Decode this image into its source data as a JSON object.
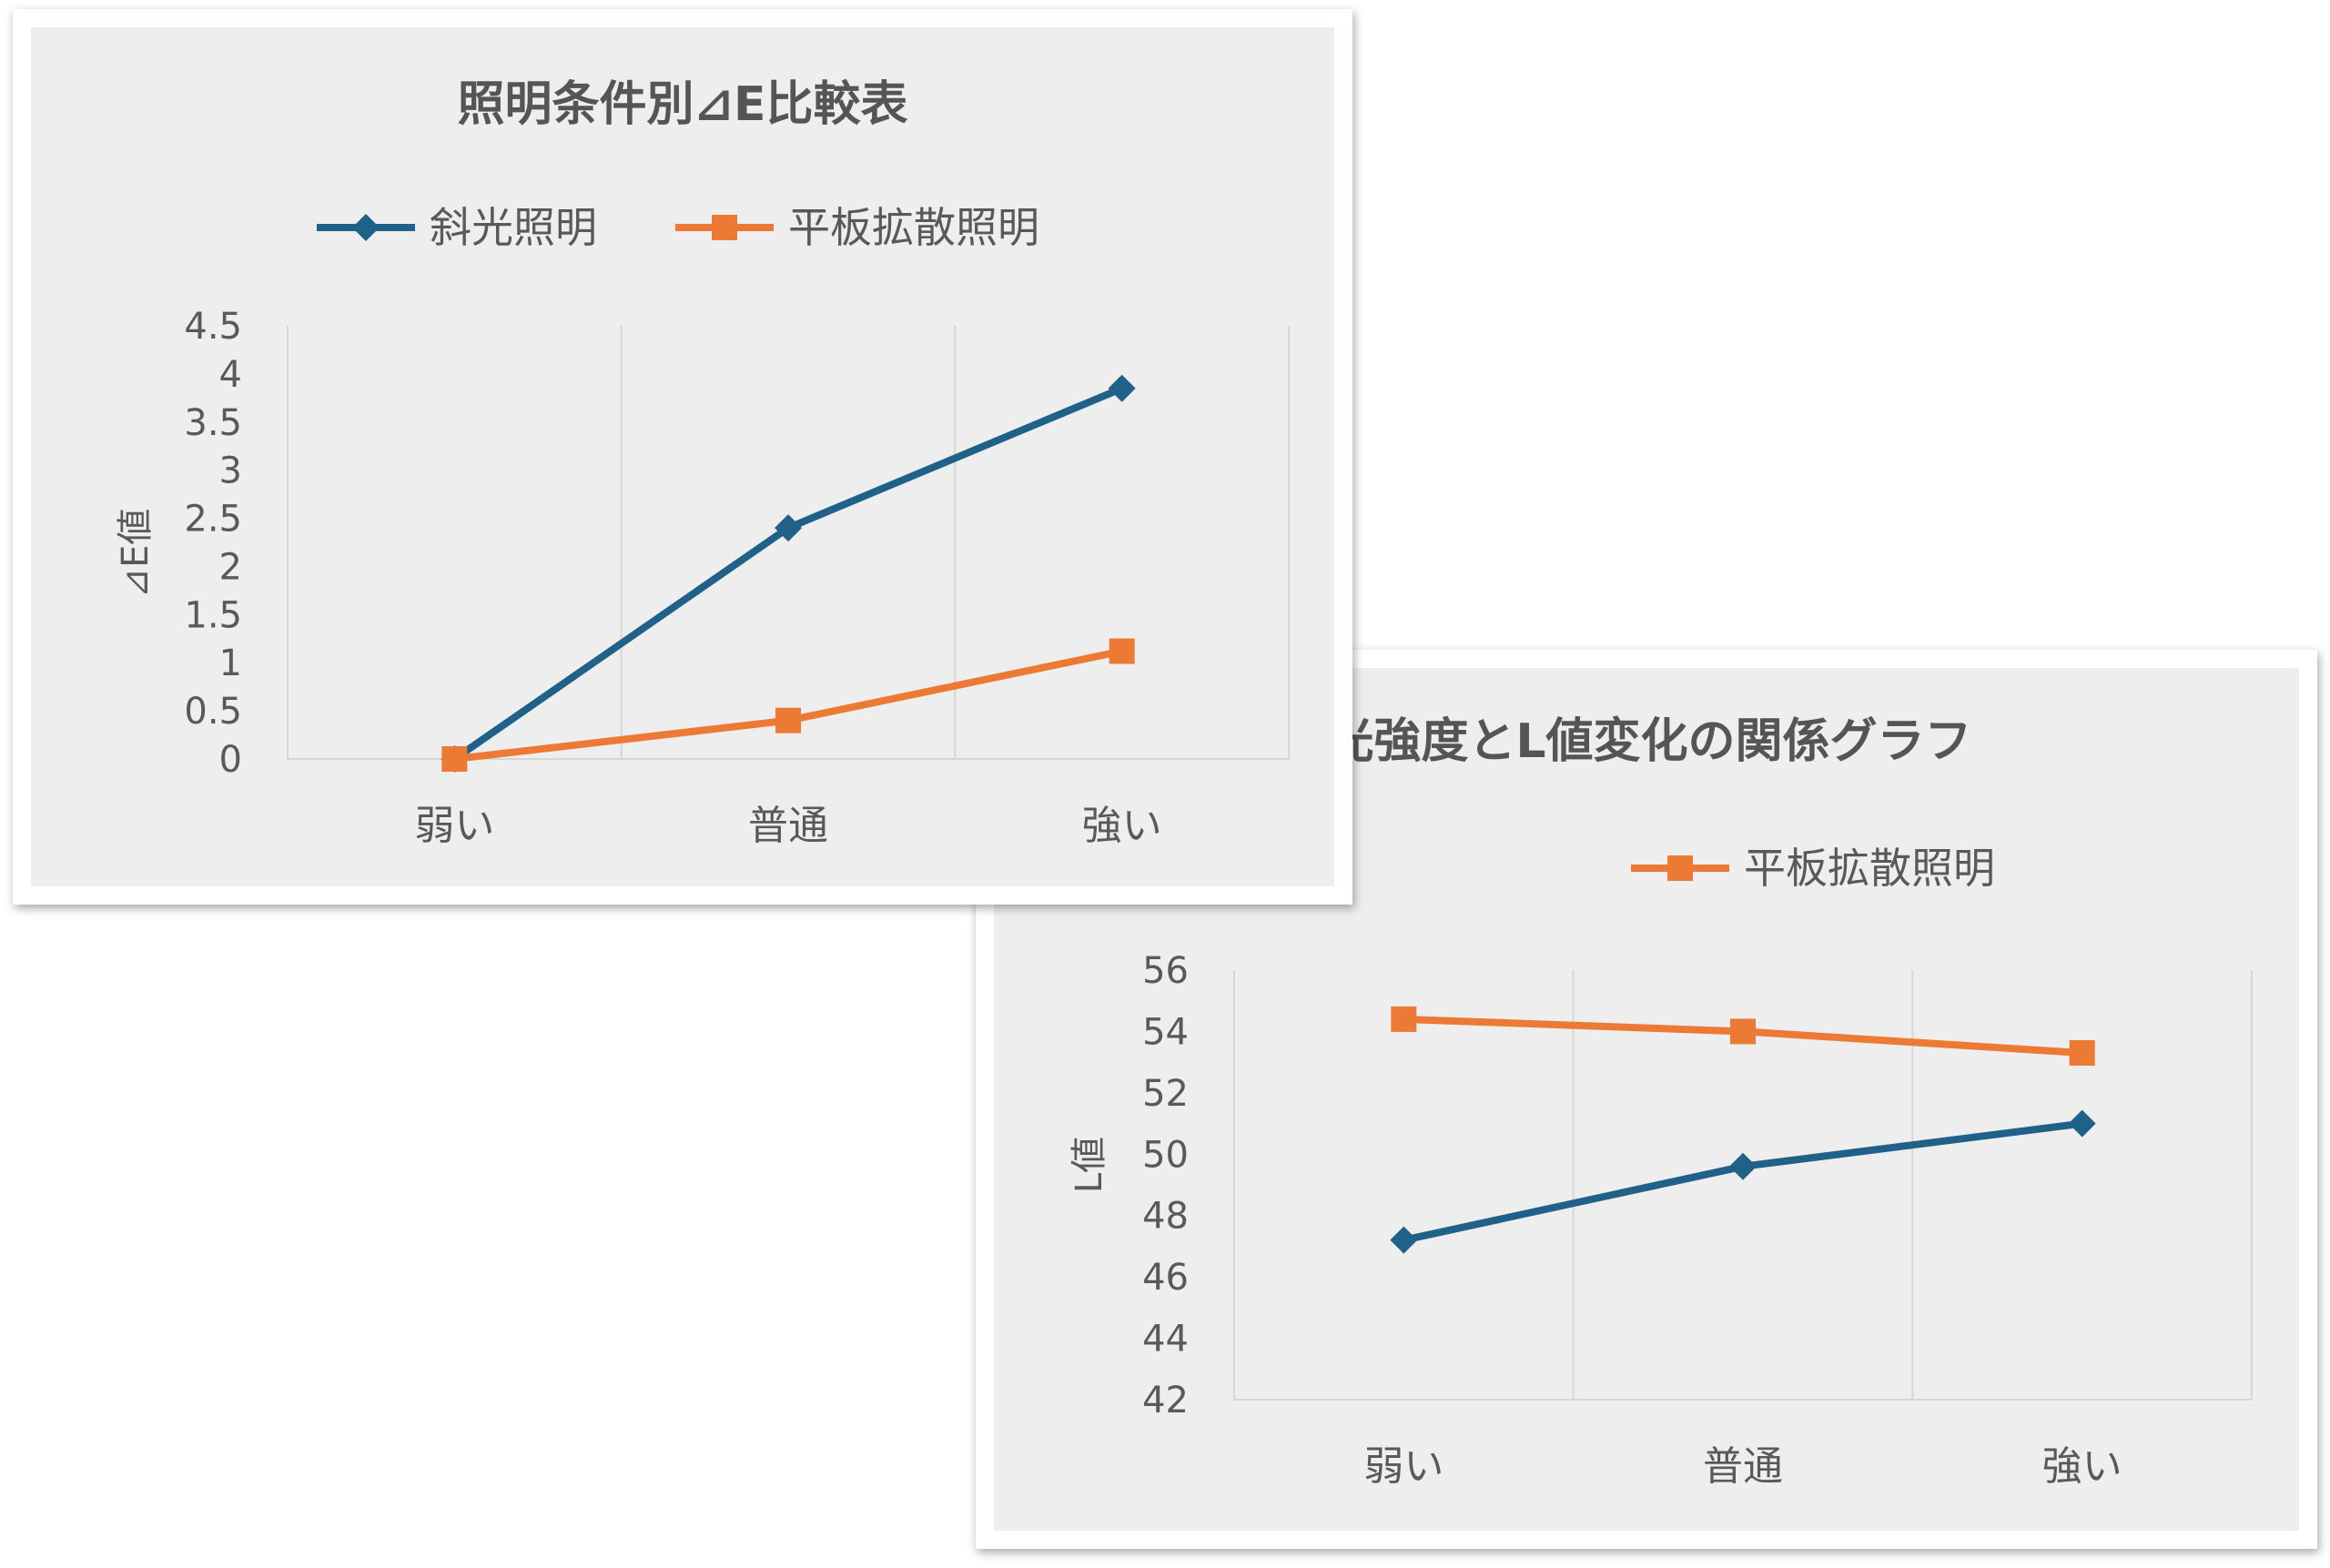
{
  "chart_data": [
    {
      "type": "line",
      "title": "照明条件別⊿E比較表",
      "categories": [
        "弱い",
        "普通",
        "強い"
      ],
      "ylabel": "⊿E値",
      "ylim": [
        0,
        4.5
      ],
      "yticks": [
        "0",
        "0.5",
        "1",
        "1.5",
        "2",
        "2.5",
        "3",
        "3.5",
        "4",
        "4.5"
      ],
      "grid": "vertical",
      "legend": "top",
      "series": [
        {
          "name": "斜光照明",
          "values": [
            0,
            2.4,
            3.85
          ],
          "color": "#1f6188",
          "marker": "diamond"
        },
        {
          "name": "平板拡散照明",
          "values": [
            0,
            0.4,
            1.12
          ],
          "color": "#ec7a34",
          "marker": "square"
        }
      ]
    },
    {
      "type": "line",
      "title": "光強度とL値変化の関係グラフ",
      "categories": [
        "弱い",
        "普通",
        "強い"
      ],
      "ylabel": "L値",
      "ylim": [
        42,
        56
      ],
      "yticks": [
        "42",
        "44",
        "46",
        "48",
        "50",
        "52",
        "54",
        "56"
      ],
      "grid": "vertical",
      "legend": "top",
      "series": [
        {
          "name": "斜光照明",
          "values": [
            47.2,
            49.6,
            51.0
          ],
          "color": "#1f6188",
          "marker": "diamond"
        },
        {
          "name": "平板拡散照明",
          "values": [
            54.4,
            54.0,
            53.3
          ],
          "color": "#ec7a34",
          "marker": "square"
        }
      ]
    }
  ]
}
